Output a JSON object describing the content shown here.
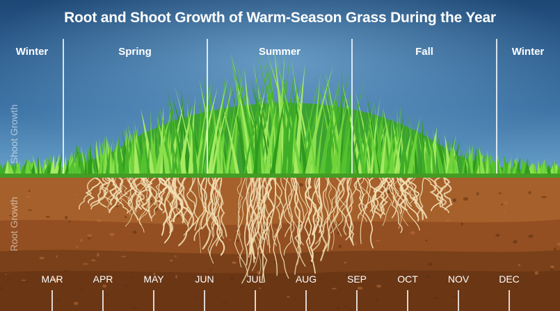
{
  "title": "Root and Shoot Growth of Warm-Season Grass During the Year",
  "seasons": [
    {
      "label": "Winter"
    },
    {
      "label": "Spring"
    },
    {
      "label": "Summer"
    },
    {
      "label": "Fall"
    },
    {
      "label": "Winter"
    }
  ],
  "side_labels": {
    "shoot": "Shoot Growth",
    "root": "Root Growth"
  },
  "months": [
    "MAR",
    "APR",
    "MAY",
    "JUN",
    "JUL",
    "AUG",
    "SEP",
    "OCT",
    "NOV",
    "DEC"
  ],
  "colors": {
    "sky_top": "#1e4a78",
    "sky_bottom": "#5b95c2",
    "grass_dark": "#2f9a1c",
    "grass_light": "#86e04a",
    "soil_top": "#a8622c",
    "soil_mid": "#8e4f22",
    "soil_deep": "#6e3a17",
    "root": "#f2dfb4"
  }
}
